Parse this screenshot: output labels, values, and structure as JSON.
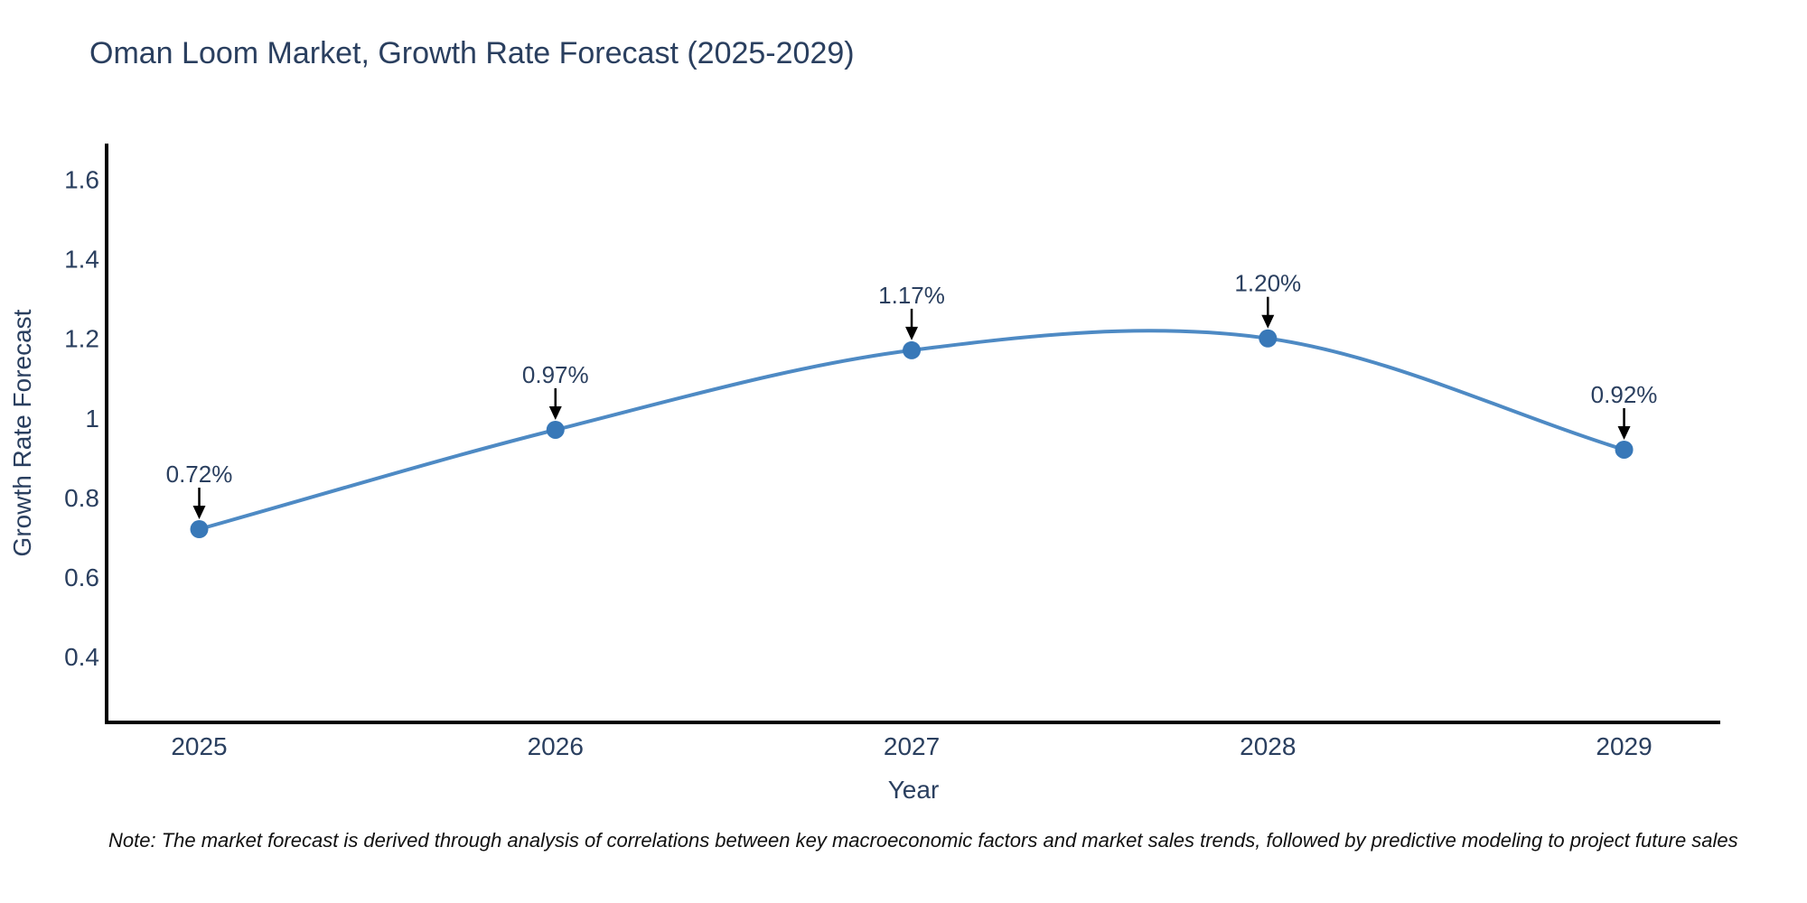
{
  "chart_data": {
    "type": "line",
    "line_shape": "spline",
    "title": "Oman Loom Market, Growth Rate Forecast (2025-2029)",
    "xlabel": "Year",
    "ylabel": "Growth Rate Forecast",
    "x": [
      2025,
      2026,
      2027,
      2028,
      2029
    ],
    "values": [
      0.72,
      0.97,
      1.17,
      1.2,
      0.92
    ],
    "point_labels": [
      "0.72%",
      "0.97%",
      "1.17%",
      "1.20%",
      "0.92%"
    ],
    "x_tick_labels": [
      "2025",
      "2026",
      "2027",
      "2028",
      "2029"
    ],
    "y_ticks": [
      0.4,
      0.6,
      0.8,
      1,
      1.2,
      1.4,
      1.6
    ],
    "y_tick_labels": [
      "0.4",
      "0.6",
      "0.8",
      "1",
      "1.2",
      "1.4",
      "1.6"
    ],
    "xlim": [
      2024.74,
      2029.27
    ],
    "ylim": [
      0.234,
      1.69
    ],
    "grid": false,
    "legend": "none",
    "marker_style": "circle",
    "annotation_arrows": true,
    "colors": {
      "line": "#4e8ac4",
      "marker": "#3878b8",
      "text": "#2a3f5f",
      "axis": "#000000",
      "arrow": "#000000",
      "background": "#ffffff"
    }
  },
  "note": {
    "text": "Note: The market forecast is derived through analysis of correlations between key macroeconomic factors and market sales trends, followed by predictive modeling to project future sales"
  }
}
